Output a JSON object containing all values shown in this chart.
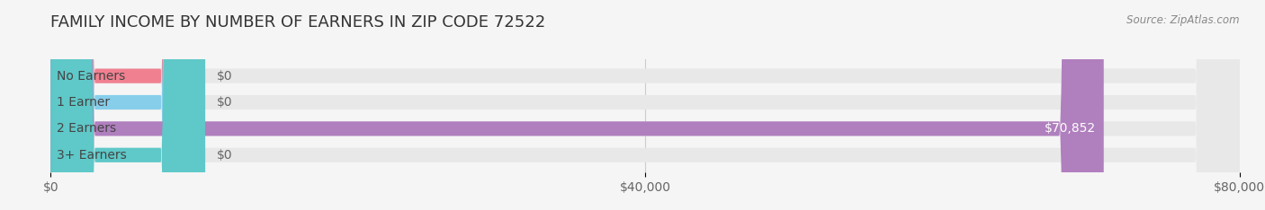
{
  "title": "FAMILY INCOME BY NUMBER OF EARNERS IN ZIP CODE 72522",
  "source": "Source: ZipAtlas.com",
  "categories": [
    "No Earners",
    "1 Earner",
    "2 Earners",
    "3+ Earners"
  ],
  "values": [
    0,
    0,
    70852,
    0
  ],
  "bar_colors": [
    "#f08090",
    "#87CEEB",
    "#b07fbe",
    "#5fc8c8"
  ],
  "label_colors": [
    "#f08090",
    "#87CEEB",
    "#b07fbe",
    "#5fc8c8"
  ],
  "xlim": [
    0,
    80000
  ],
  "xticks": [
    0,
    40000,
    80000
  ],
  "xtick_labels": [
    "$0",
    "$40,000",
    "$80,000"
  ],
  "bg_color": "#f5f5f5",
  "bar_bg_color": "#e8e8e8",
  "title_fontsize": 13,
  "bar_height": 0.55,
  "value_label_zero": "$0",
  "value_label_nonzero": "$70,852"
}
